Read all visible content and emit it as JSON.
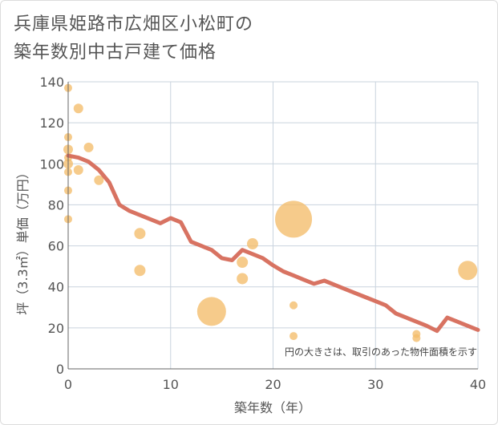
{
  "title_line1": "兵庫県姫路市広畑区小松町の",
  "title_line2": "築年数別中古戸建て価格",
  "chart_data": {
    "type": "scatter",
    "title": "兵庫県姫路市広畑区小松町の築年数別中古戸建て価格",
    "xlabel": "築年数（年）",
    "ylabel": "坪（3.3㎡）単価（万円）",
    "xlim": [
      0,
      40
    ],
    "ylim": [
      0,
      140
    ],
    "xticks": [
      0,
      10,
      20,
      30,
      40
    ],
    "yticks": [
      0,
      20,
      40,
      60,
      80,
      100,
      120,
      140
    ],
    "grid": true,
    "note": "円の大きさは、取引のあった物件面積を示す",
    "colors": {
      "bubble": "#f3bd6a",
      "line": "#d66b5a",
      "grid": "#c9d3de"
    },
    "points": [
      {
        "x": 0,
        "y": 137,
        "size": 5
      },
      {
        "x": 0,
        "y": 113,
        "size": 5
      },
      {
        "x": 0,
        "y": 107,
        "size": 6
      },
      {
        "x": 0,
        "y": 103,
        "size": 5
      },
      {
        "x": 0,
        "y": 100,
        "size": 6
      },
      {
        "x": 0,
        "y": 96,
        "size": 5
      },
      {
        "x": 0,
        "y": 87,
        "size": 5
      },
      {
        "x": 0,
        "y": 73,
        "size": 5
      },
      {
        "x": 1,
        "y": 127,
        "size": 6
      },
      {
        "x": 1,
        "y": 97,
        "size": 6
      },
      {
        "x": 2,
        "y": 108,
        "size": 6
      },
      {
        "x": 3,
        "y": 92,
        "size": 6
      },
      {
        "x": 7,
        "y": 66,
        "size": 7
      },
      {
        "x": 7,
        "y": 48,
        "size": 7
      },
      {
        "x": 14,
        "y": 28,
        "size": 18
      },
      {
        "x": 17,
        "y": 52,
        "size": 7
      },
      {
        "x": 17,
        "y": 44,
        "size": 7
      },
      {
        "x": 18,
        "y": 61,
        "size": 7
      },
      {
        "x": 22,
        "y": 73,
        "size": 23
      },
      {
        "x": 22,
        "y": 31,
        "size": 5
      },
      {
        "x": 22,
        "y": 16,
        "size": 5
      },
      {
        "x": 34,
        "y": 17,
        "size": 5
      },
      {
        "x": 34,
        "y": 15,
        "size": 5
      },
      {
        "x": 39,
        "y": 48,
        "size": 12
      }
    ],
    "trend": {
      "x": [
        0,
        1,
        2,
        3,
        4,
        5,
        6,
        7,
        8,
        9,
        10,
        11,
        12,
        13,
        14,
        15,
        16,
        17,
        18,
        19,
        20,
        21,
        22,
        23,
        24,
        25,
        26,
        27,
        28,
        29,
        30,
        31,
        32,
        33,
        34,
        35,
        36,
        37,
        38,
        39,
        40
      ],
      "y": [
        104,
        103,
        101,
        97,
        91,
        80,
        77,
        75,
        73,
        71,
        73.5,
        71.5,
        62,
        60,
        58,
        54,
        53,
        58,
        56,
        54,
        50.5,
        47.5,
        45.5,
        43.5,
        41.5,
        43,
        41,
        39,
        37,
        35,
        33,
        31,
        27,
        25,
        23,
        21,
        18.5,
        25,
        23,
        21,
        19
      ]
    }
  }
}
